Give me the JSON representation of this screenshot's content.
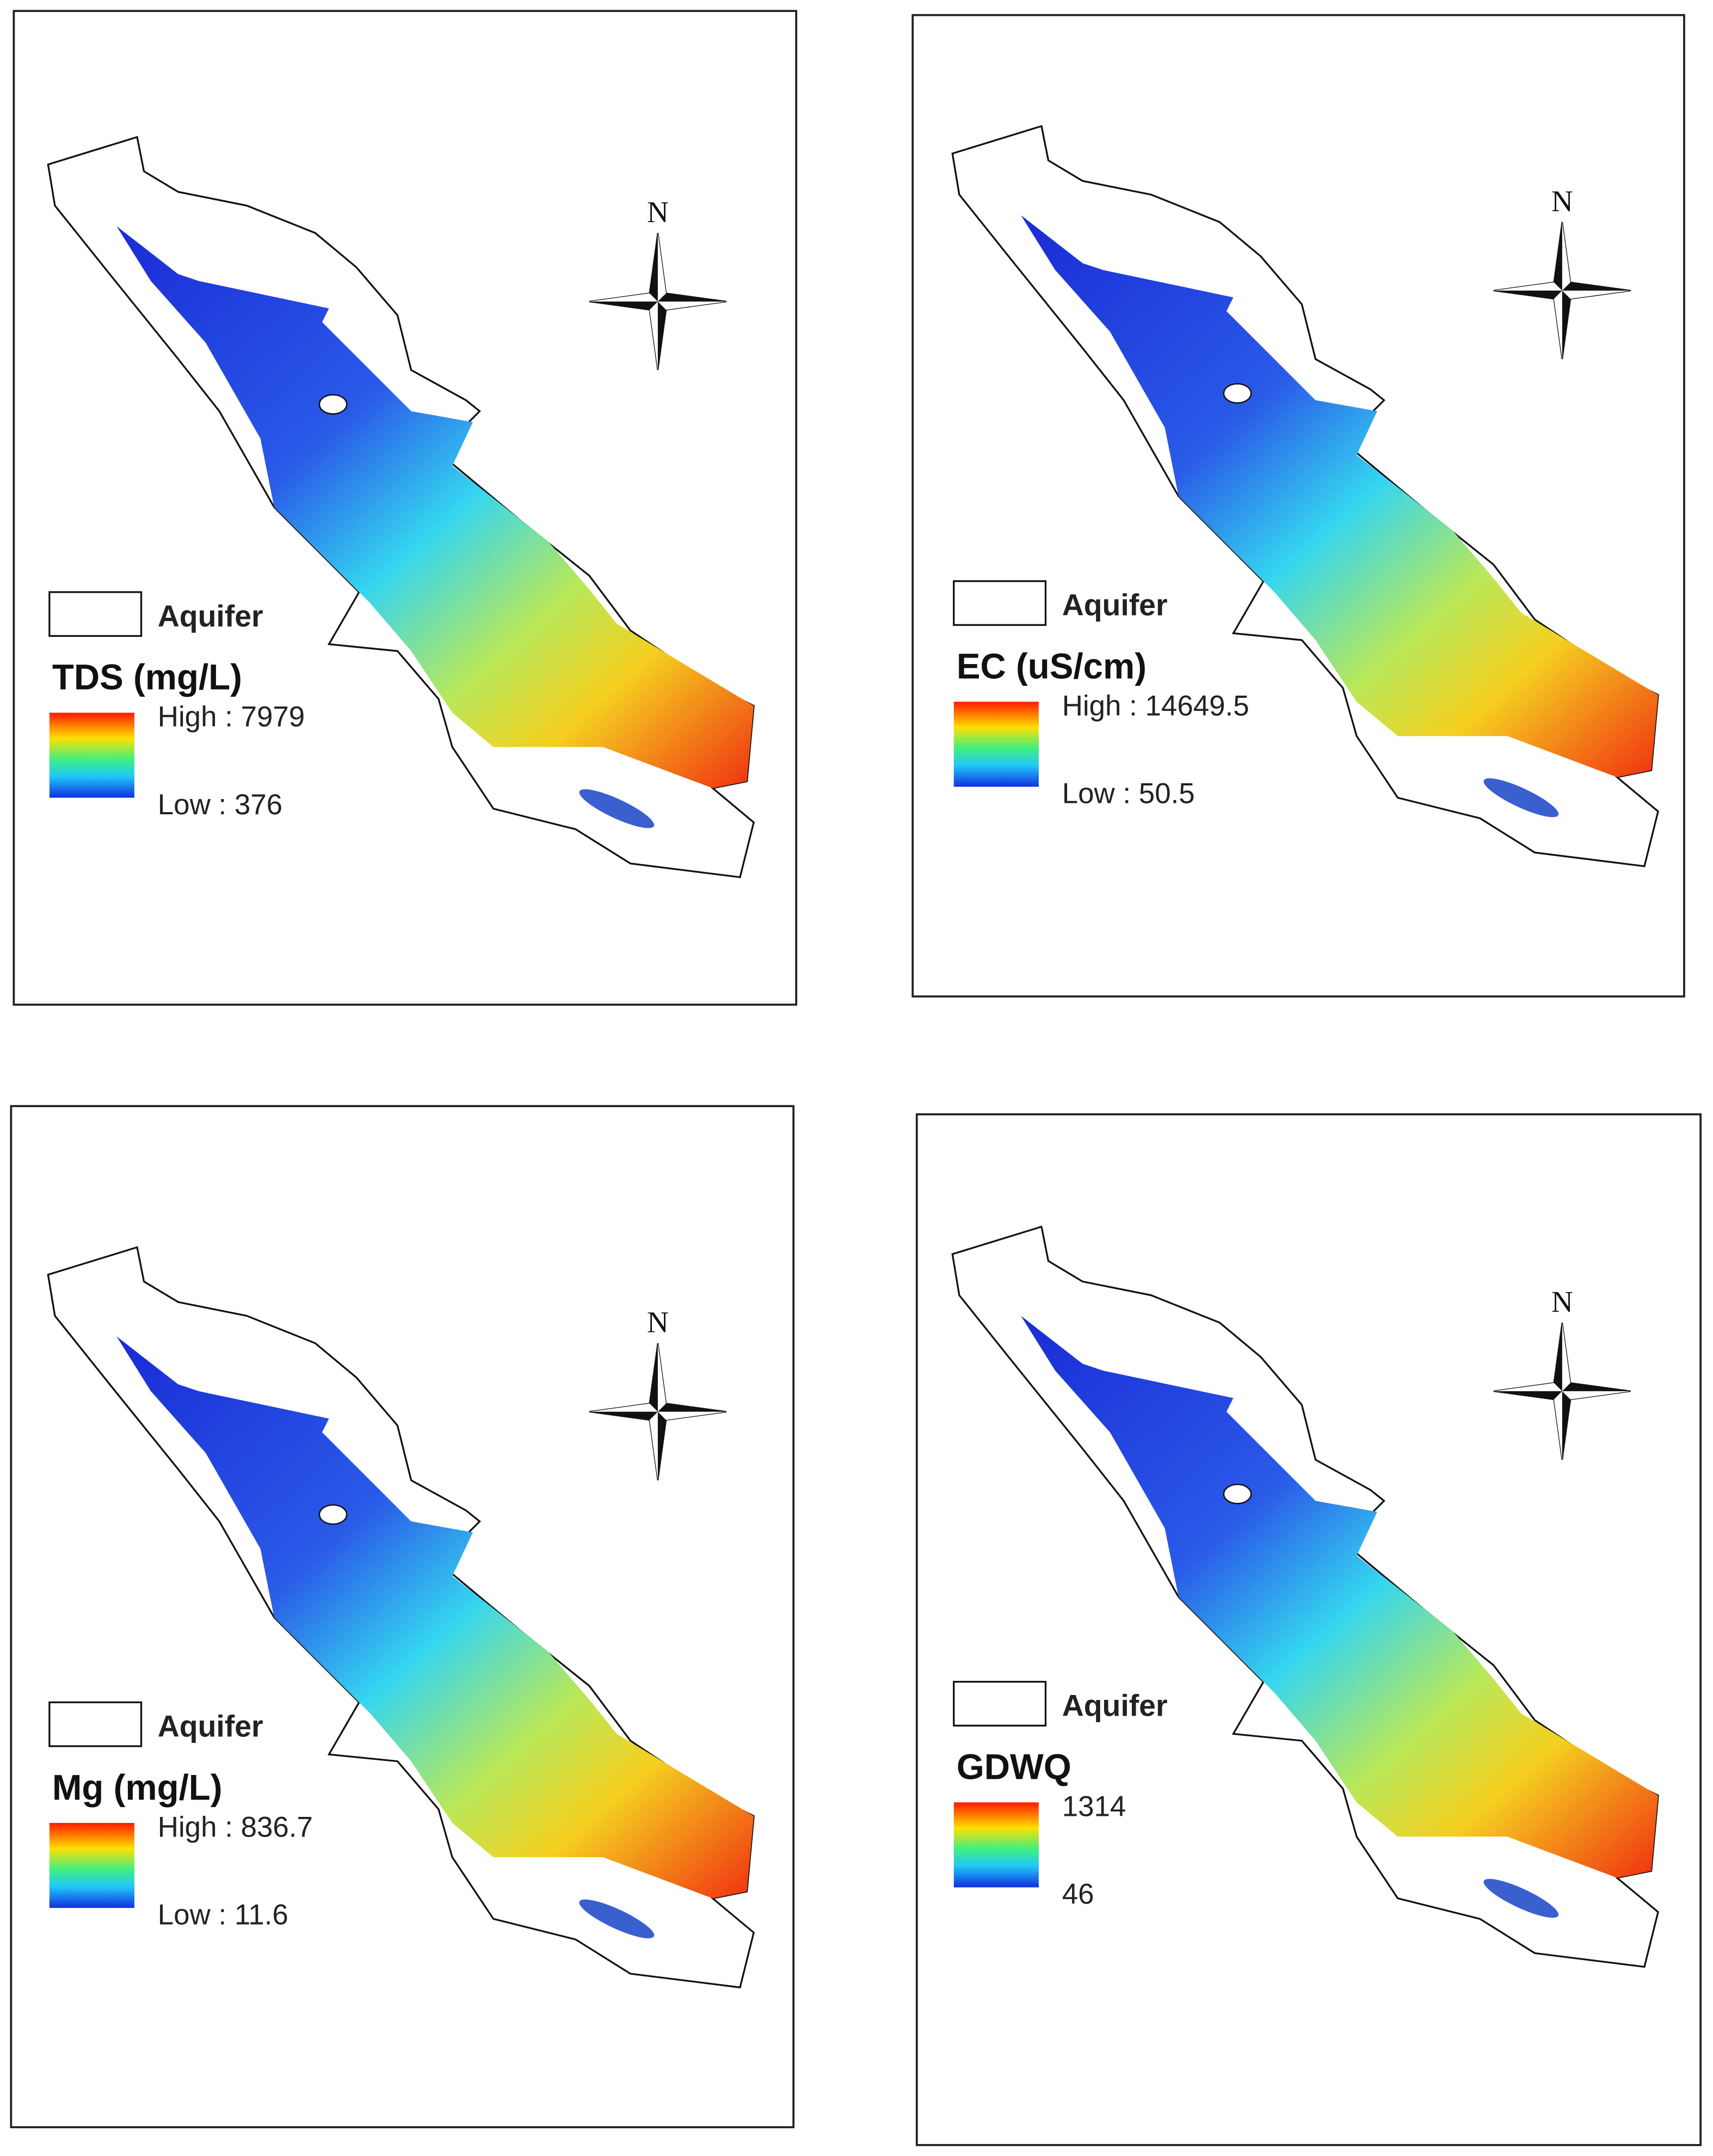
{
  "panels": [
    {
      "legend": "Aquifer",
      "title": "TDS (mg/L)",
      "high": "High : 7979",
      "low": "Low : 376",
      "north": "N"
    },
    {
      "legend": "Aquifer",
      "title": "EC (uS/cm)",
      "high": "High : 14649.5",
      "low": "Low : 50.5",
      "north": "N"
    },
    {
      "legend": "Aquifer",
      "title": "Mg (mg/L)",
      "high": "High : 836.7",
      "low": "Low : 11.6",
      "north": "N"
    },
    {
      "legend": "Aquifer",
      "title": "GDWQ",
      "high": "1314",
      "low": "46",
      "north": "N"
    }
  ]
}
